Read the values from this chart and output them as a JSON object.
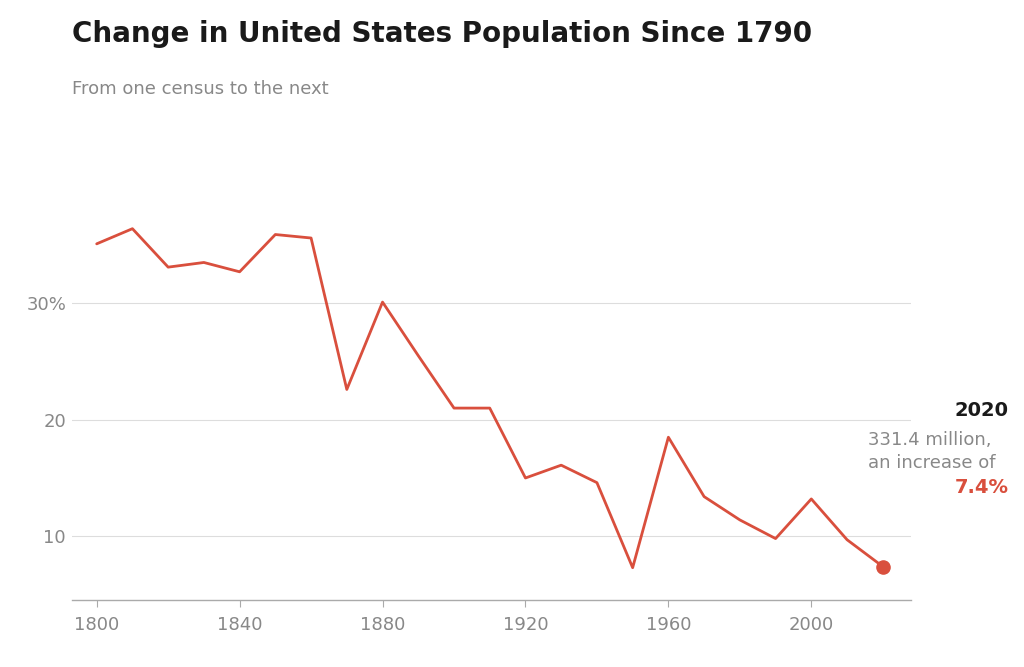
{
  "title": "Change in United States Population Since 1790",
  "subtitle": "From one census to the next",
  "background_color": "#ffffff",
  "line_color": "#d94f3d",
  "title_color": "#1a1a1a",
  "subtitle_color": "#888888",
  "annotation_label_color": "#888888",
  "annotation_year_color": "#1a1a1a",
  "annotation_pct_color": "#d94f3d",
  "years": [
    1800,
    1810,
    1820,
    1830,
    1840,
    1850,
    1860,
    1870,
    1880,
    1890,
    1900,
    1910,
    1920,
    1930,
    1940,
    1950,
    1960,
    1970,
    1980,
    1990,
    2000,
    2010,
    2020
  ],
  "values": [
    35.1,
    36.4,
    33.1,
    33.5,
    32.7,
    35.9,
    35.6,
    22.6,
    30.1,
    25.5,
    21.0,
    21.0,
    15.0,
    16.1,
    14.6,
    7.3,
    18.5,
    13.4,
    11.4,
    9.8,
    13.2,
    9.7,
    7.4
  ],
  "yticks": [
    10,
    20,
    30
  ],
  "ytick_labels": [
    "10",
    "20",
    "30%"
  ],
  "ylim": [
    4.5,
    40
  ],
  "xlim": [
    1793,
    2028
  ],
  "xticks": [
    1800,
    1840,
    1880,
    1920,
    1960,
    2000
  ],
  "annotation_year": "2020",
  "annotation_line1": "331.4 million,",
  "annotation_line2": "an increase of",
  "annotation_pct": "7.4%",
  "dot_year": 2020,
  "dot_value": 7.4,
  "dot_size": 90,
  "line_width": 2.0,
  "title_fontsize": 20,
  "subtitle_fontsize": 13,
  "tick_fontsize": 13,
  "ann_year_fontsize": 14,
  "ann_text_fontsize": 13,
  "ann_pct_fontsize": 14
}
